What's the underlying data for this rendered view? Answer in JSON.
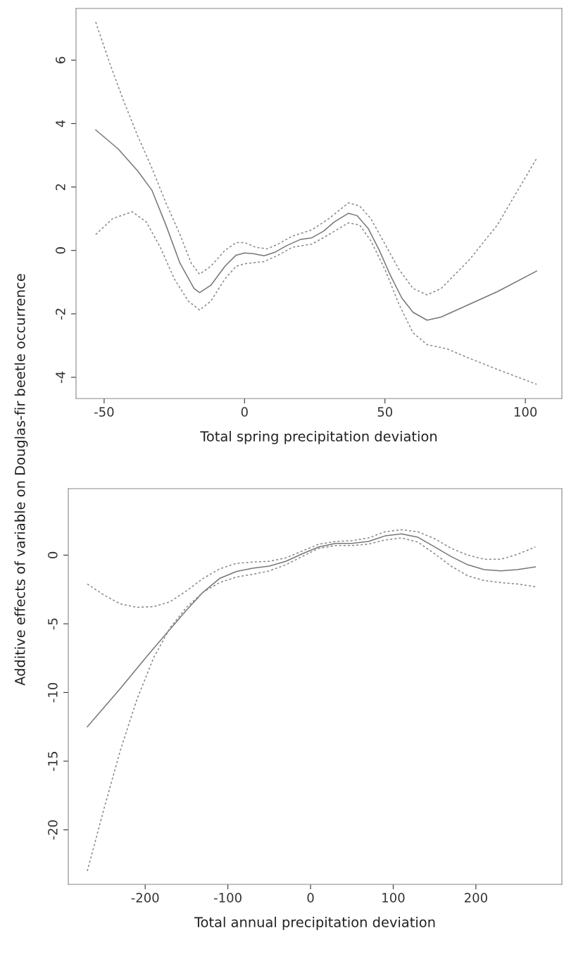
{
  "chart_data": [
    {
      "type": "line",
      "xlabel": "Total spring precipitation deviation",
      "ylabel": "Additive effects of variable on Douglas-fir beetle occurrence",
      "xlim": [
        -60,
        113
      ],
      "xticks": [
        -50,
        0,
        50,
        100
      ],
      "ylim": [
        -4.67,
        7.63
      ],
      "yticks": [
        -4,
        -2,
        0,
        2,
        4,
        6
      ],
      "grid": false,
      "legend": false,
      "series": [
        {
          "color": "#777777",
          "line_style": "solid",
          "x": [
            -53,
            -45,
            -38,
            -33,
            -28,
            -23,
            -18,
            -16,
            -12,
            -7,
            -3,
            0,
            3,
            7,
            11,
            15,
            20,
            24,
            28,
            32,
            37,
            40,
            44,
            48,
            52,
            56,
            60,
            65,
            70,
            80,
            90,
            104
          ],
          "values": [
            3.8,
            3.2,
            2.5,
            1.9,
            0.8,
            -0.4,
            -1.2,
            -1.33,
            -1.1,
            -0.5,
            -0.15,
            -0.08,
            -0.1,
            -0.17,
            -0.05,
            0.15,
            0.35,
            0.4,
            0.6,
            0.9,
            1.17,
            1.1,
            0.7,
            0,
            -0.8,
            -1.5,
            -1.95,
            -2.2,
            -2.1,
            -1.7,
            -1.3,
            -0.65
          ]
        },
        {
          "color": "#888888",
          "line_style": "dotted",
          "x": [
            -53,
            -48,
            -43,
            -38,
            -33,
            -28,
            -23,
            -19,
            -16,
            -12,
            -7,
            -3,
            0,
            4,
            8,
            12,
            17,
            24,
            30,
            37,
            41,
            45,
            50,
            55,
            60,
            65,
            70,
            80,
            90,
            104
          ],
          "values": [
            7.2,
            5.9,
            4.7,
            3.6,
            2.6,
            1.5,
            0.5,
            -0.4,
            -0.75,
            -0.5,
            0,
            0.25,
            0.25,
            0.1,
            0.05,
            0.2,
            0.45,
            0.65,
            1.0,
            1.5,
            1.4,
            1.0,
            0.2,
            -0.6,
            -1.2,
            -1.4,
            -1.2,
            -0.3,
            0.8,
            2.9
          ]
        },
        {
          "color": "#888888",
          "line_style": "dotted",
          "x": [
            -53,
            -47,
            -40,
            -35,
            -30,
            -25,
            -20,
            -16,
            -12,
            -7,
            -3,
            0,
            7,
            12,
            17,
            24,
            30,
            37,
            41,
            45,
            50,
            55,
            60,
            65,
            72,
            80,
            90,
            104
          ],
          "values": [
            0.5,
            1.0,
            1.22,
            0.9,
            0.1,
            -0.9,
            -1.6,
            -1.88,
            -1.6,
            -0.9,
            -0.5,
            -0.42,
            -0.35,
            -0.15,
            0.1,
            0.2,
            0.5,
            0.87,
            0.8,
            0.3,
            -0.6,
            -1.7,
            -2.6,
            -2.97,
            -3.1,
            -3.4,
            -3.75,
            -4.22
          ]
        }
      ]
    },
    {
      "type": "line",
      "xlabel": "Total annual precipitation deviation",
      "xlim": [
        -293,
        304
      ],
      "xticks": [
        -200,
        -100,
        0,
        100,
        200
      ],
      "ylim": [
        -23.97,
        4.84
      ],
      "yticks": [
        -20,
        -15,
        -10,
        -5,
        0
      ],
      "grid": false,
      "legend": false,
      "series": [
        {
          "color": "#777777",
          "line_style": "solid",
          "x": [
            -270,
            -230,
            -197,
            -170,
            -150,
            -130,
            -110,
            -90,
            -70,
            -50,
            -30,
            -10,
            10,
            30,
            50,
            70,
            90,
            110,
            130,
            150,
            170,
            190,
            210,
            230,
            250,
            272
          ],
          "values": [
            -12.5,
            -9.7,
            -7.3,
            -5.4,
            -4.0,
            -2.7,
            -1.7,
            -1.2,
            -0.95,
            -0.8,
            -0.45,
            0.1,
            0.6,
            0.85,
            0.85,
            1.0,
            1.4,
            1.55,
            1.3,
            0.6,
            -0.1,
            -0.7,
            -1.05,
            -1.15,
            -1.05,
            -0.85
          ]
        },
        {
          "color": "#888888",
          "line_style": "dotted",
          "x": [
            -270,
            -250,
            -230,
            -210,
            -190,
            -170,
            -150,
            -130,
            -110,
            -90,
            -70,
            -50,
            -30,
            -10,
            10,
            30,
            50,
            70,
            90,
            110,
            130,
            150,
            170,
            190,
            210,
            230,
            250,
            272
          ],
          "values": [
            -2.1,
            -2.9,
            -3.55,
            -3.8,
            -3.75,
            -3.4,
            -2.6,
            -1.7,
            -1.0,
            -0.6,
            -0.5,
            -0.45,
            -0.2,
            0.3,
            0.8,
            1.0,
            1.05,
            1.25,
            1.7,
            1.85,
            1.7,
            1.2,
            0.5,
            0.0,
            -0.3,
            -0.3,
            0.05,
            0.6
          ]
        },
        {
          "color": "#888888",
          "line_style": "dotted",
          "x": [
            -270,
            -250,
            -230,
            -210,
            -190,
            -170,
            -150,
            -130,
            -110,
            -90,
            -70,
            -50,
            -30,
            -10,
            10,
            30,
            50,
            70,
            90,
            110,
            130,
            150,
            170,
            190,
            210,
            230,
            250,
            272
          ],
          "values": [
            -23.0,
            -18.5,
            -14.2,
            -10.5,
            -7.5,
            -5.3,
            -3.8,
            -2.7,
            -2.0,
            -1.6,
            -1.4,
            -1.15,
            -0.7,
            -0.1,
            0.5,
            0.7,
            0.7,
            0.8,
            1.1,
            1.25,
            0.95,
            0.1,
            -0.8,
            -1.5,
            -1.85,
            -2.0,
            -2.1,
            -2.3
          ]
        }
      ]
    }
  ]
}
